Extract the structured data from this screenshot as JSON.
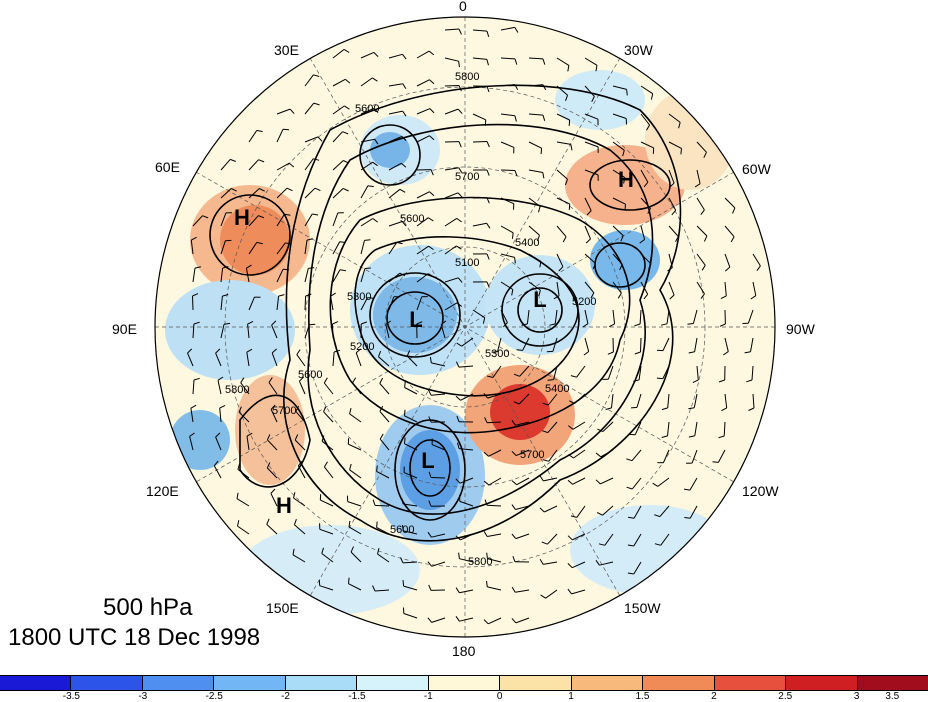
{
  "caption": {
    "level": "500 hPa",
    "time": "1800 UTC 18 Dec 1998"
  },
  "longitude_labels": {
    "lon_0": "0",
    "lon_30w": "30W",
    "lon_60w": "60W",
    "lon_90w": "90W",
    "lon_120w": "120W",
    "lon_150w": "150W",
    "lon_180": "180",
    "lon_150e": "150E",
    "lon_120e": "120E",
    "lon_90e": "90E",
    "lon_60e": "60E",
    "lon_30e": "30E"
  },
  "pressure_centers": [
    "H",
    "H",
    "H",
    "L",
    "L",
    "L"
  ],
  "contour_labels": [
    "5800",
    "5600",
    "5700",
    "5600",
    "5400",
    "5300",
    "5200",
    "5100",
    "5200",
    "5300",
    "5400",
    "5600",
    "5700",
    "5800",
    "5700",
    "5600",
    "5800"
  ],
  "colorbar": {
    "colors": [
      "#1a1ad6",
      "#2d54e8",
      "#4f8ff0",
      "#73b6f5",
      "#a8dcf7",
      "#d6f2fb",
      "#fff8d8",
      "#fbe2a6",
      "#f7b97c",
      "#f08a56",
      "#e6503c",
      "#d01f23",
      "#a10d1c"
    ],
    "tick_labels": [
      "-3.5",
      "-3",
      "-2.5",
      "-2",
      "-1.5",
      "-1",
      "0",
      "1",
      "1.5",
      "2",
      "2.5",
      "3",
      "3.5"
    ]
  }
}
